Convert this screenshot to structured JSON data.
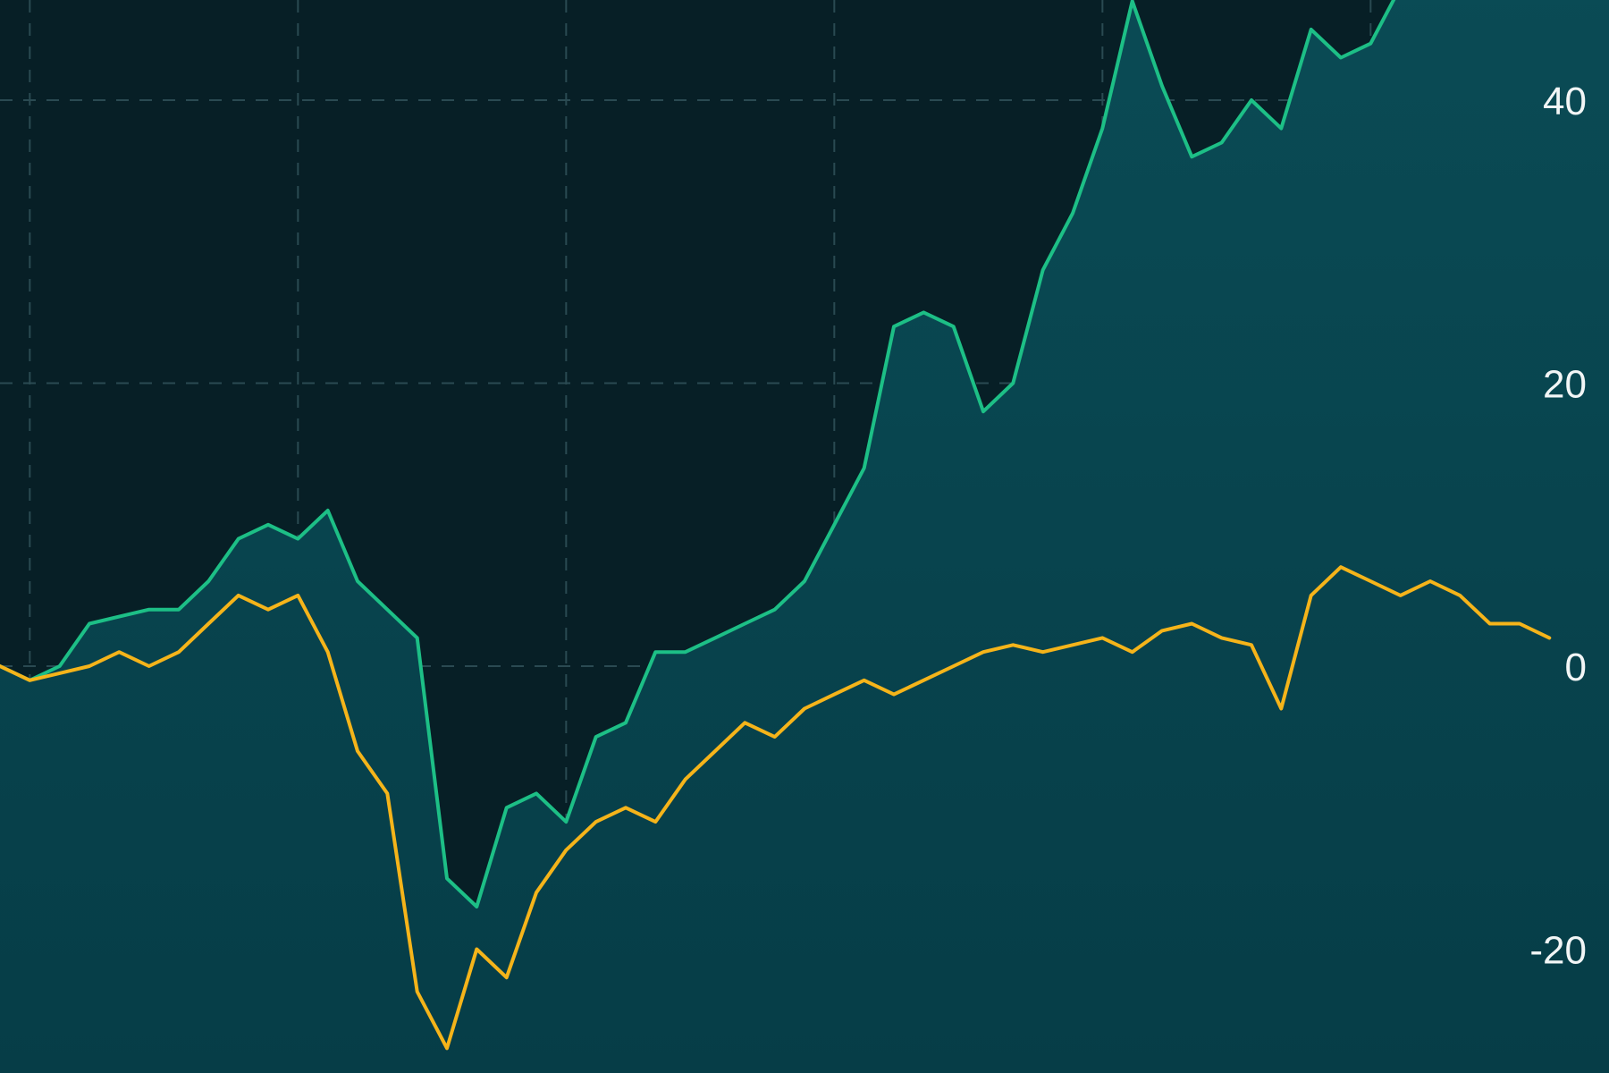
{
  "chart_data": {
    "type": "line",
    "title": "",
    "xlabel": "",
    "ylabel": "",
    "ylim": [
      -30,
      50
    ],
    "y_axis_position": "right",
    "y_ticks": [
      {
        "value": 40,
        "label": "40"
      },
      {
        "value": 20,
        "label": "20"
      },
      {
        "value": 0,
        "label": "0"
      },
      {
        "value": -20,
        "label": "-20"
      }
    ],
    "grid": true,
    "x_gridline_positions": [
      1,
      10,
      19,
      28,
      37,
      46
    ],
    "x_range": [
      0,
      54
    ],
    "colors": {
      "background": "#071f26",
      "area_fill_top": "#0a4b55",
      "area_fill_bottom": "#063d47",
      "grid": "#2a4a52"
    },
    "series": [
      {
        "color": "#1dbf86",
        "filled": true,
        "points": [
          [
            0,
            0
          ],
          [
            1,
            -1
          ],
          [
            2,
            0
          ],
          [
            3,
            3
          ],
          [
            4,
            3.5
          ],
          [
            5,
            4
          ],
          [
            6,
            4
          ],
          [
            7,
            6
          ],
          [
            8,
            9
          ],
          [
            9,
            10
          ],
          [
            10,
            9
          ],
          [
            11,
            11
          ],
          [
            12,
            6
          ],
          [
            13,
            4
          ],
          [
            14,
            2
          ],
          [
            15,
            -15
          ],
          [
            16,
            -17
          ],
          [
            17,
            -10
          ],
          [
            18,
            -9
          ],
          [
            19,
            -11
          ],
          [
            20,
            -5
          ],
          [
            21,
            -4
          ],
          [
            22,
            1
          ],
          [
            23,
            1
          ],
          [
            24,
            2
          ],
          [
            25,
            3
          ],
          [
            26,
            4
          ],
          [
            27,
            6
          ],
          [
            28,
            10
          ],
          [
            29,
            14
          ],
          [
            30,
            24
          ],
          [
            31,
            25
          ],
          [
            32,
            24
          ],
          [
            33,
            18
          ],
          [
            34,
            20
          ],
          [
            35,
            28
          ],
          [
            36,
            32
          ],
          [
            37,
            38
          ],
          [
            38,
            47
          ],
          [
            39,
            41
          ],
          [
            40,
            36
          ],
          [
            41,
            37
          ],
          [
            42,
            40
          ],
          [
            43,
            38
          ],
          [
            44,
            45
          ],
          [
            45,
            43
          ],
          [
            46,
            44
          ],
          [
            47,
            48
          ]
        ]
      },
      {
        "color": "#f5b41a",
        "filled": false,
        "points": [
          [
            0,
            0
          ],
          [
            1,
            -1
          ],
          [
            2,
            -0.5
          ],
          [
            3,
            0
          ],
          [
            4,
            1
          ],
          [
            5,
            0
          ],
          [
            6,
            1
          ],
          [
            7,
            3
          ],
          [
            8,
            5
          ],
          [
            9,
            4
          ],
          [
            10,
            5
          ],
          [
            11,
            1
          ],
          [
            12,
            -6
          ],
          [
            13,
            -9
          ],
          [
            14,
            -23
          ],
          [
            15,
            -27
          ],
          [
            16,
            -20
          ],
          [
            17,
            -22
          ],
          [
            18,
            -16
          ],
          [
            19,
            -13
          ],
          [
            20,
            -11
          ],
          [
            21,
            -10
          ],
          [
            22,
            -11
          ],
          [
            23,
            -8
          ],
          [
            24,
            -6
          ],
          [
            25,
            -4
          ],
          [
            26,
            -5
          ],
          [
            27,
            -3
          ],
          [
            28,
            -2
          ],
          [
            29,
            -1
          ],
          [
            30,
            -2
          ],
          [
            31,
            -1
          ],
          [
            32,
            0
          ],
          [
            33,
            1
          ],
          [
            34,
            1.5
          ],
          [
            35,
            1
          ],
          [
            36,
            1.5
          ],
          [
            37,
            2
          ],
          [
            38,
            1
          ],
          [
            39,
            2.5
          ],
          [
            40,
            3
          ],
          [
            41,
            2
          ],
          [
            42,
            1.5
          ],
          [
            43,
            -3
          ],
          [
            44,
            5
          ],
          [
            45,
            7
          ],
          [
            46,
            6
          ],
          [
            47,
            5
          ],
          [
            48,
            6
          ],
          [
            49,
            5
          ],
          [
            50,
            3
          ],
          [
            51,
            3
          ],
          [
            52,
            2
          ]
        ]
      }
    ]
  }
}
